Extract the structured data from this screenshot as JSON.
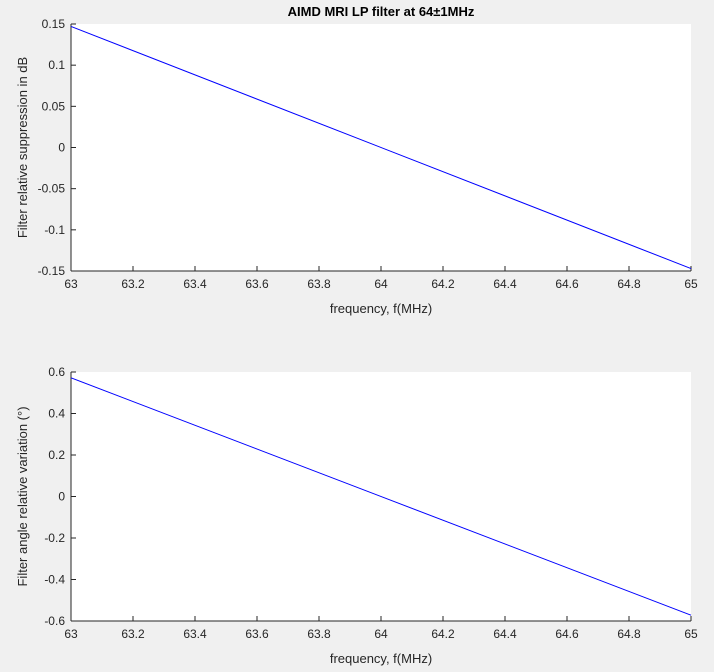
{
  "chart_data": [
    {
      "type": "line",
      "title": "AIMD MRI LP filter at 64±1MHz",
      "xlabel": "frequency, f(MHz)",
      "ylabel": "Filter relative suppression in dB",
      "xlim": [
        63,
        65
      ],
      "ylim": [
        -0.15,
        0.15
      ],
      "grid": false,
      "x_ticks": [
        63,
        63.2,
        63.4,
        63.6,
        63.8,
        64,
        64.2,
        64.4,
        64.6,
        64.8,
        65
      ],
      "x_tick_labels": [
        "63",
        "63.2",
        "63.4",
        "63.6",
        "63.8",
        "64",
        "64.2",
        "64.4",
        "64.6",
        "64.8",
        "65"
      ],
      "y_ticks": [
        -0.15,
        -0.1,
        -0.05,
        0,
        0.05,
        0.1,
        0.15
      ],
      "y_tick_labels": [
        "-0.15",
        "-0.1",
        "-0.05",
        "0",
        "0.05",
        "0.1",
        "0.15"
      ],
      "line_color": "#0000ff",
      "series": [
        {
          "x": [
            63,
            65
          ],
          "y": [
            0.147,
            -0.147
          ]
        }
      ]
    },
    {
      "type": "line",
      "title": "",
      "xlabel": "frequency, f(MHz)",
      "ylabel": "Filter angle relative variation (°)",
      "xlim": [
        63,
        65
      ],
      "ylim": [
        -0.6,
        0.6
      ],
      "grid": false,
      "x_ticks": [
        63,
        63.2,
        63.4,
        63.6,
        63.8,
        64,
        64.2,
        64.4,
        64.6,
        64.8,
        65
      ],
      "x_tick_labels": [
        "63",
        "63.2",
        "63.4",
        "63.6",
        "63.8",
        "64",
        "64.2",
        "64.4",
        "64.6",
        "64.8",
        "65"
      ],
      "y_ticks": [
        -0.6,
        -0.4,
        -0.2,
        0,
        0.2,
        0.4,
        0.6
      ],
      "y_tick_labels": [
        "-0.6",
        "-0.4",
        "-0.2",
        "0",
        "0.2",
        "0.4",
        "0.6"
      ],
      "line_color": "#0000ff",
      "series": [
        {
          "x": [
            63,
            65
          ],
          "y": [
            0.572,
            -0.572
          ]
        }
      ]
    }
  ],
  "colors": {
    "figure_background": "#f0f0f0",
    "axes_background": "#ffffff",
    "axis_line": "#262626"
  }
}
